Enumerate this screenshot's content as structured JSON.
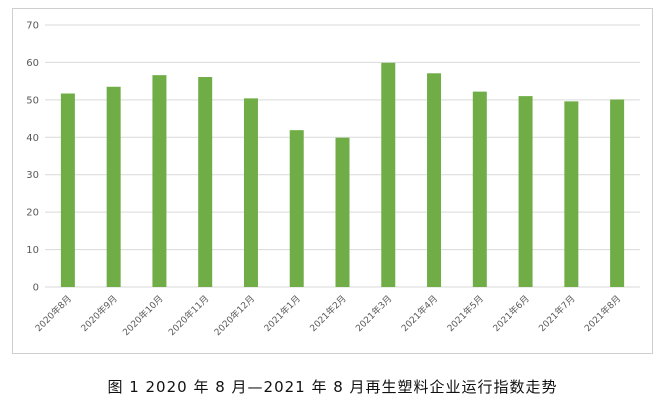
{
  "chart_data": {
    "type": "bar",
    "categories": [
      "2020年8月",
      "2020年9月",
      "2020年10月",
      "2020年11月",
      "2020年12月",
      "2021年1月",
      "2021年2月",
      "2021年3月",
      "2021年4月",
      "2021年5月",
      "2021年6月",
      "2021年7月",
      "2021年8月"
    ],
    "values": [
      51.7,
      53.5,
      56.6,
      56.1,
      50.4,
      41.9,
      39.9,
      59.9,
      57.1,
      52.2,
      51.0,
      49.6,
      50.1
    ],
    "ylim": [
      0,
      70
    ],
    "yticks": [
      0,
      10,
      20,
      30,
      40,
      50,
      60,
      70
    ],
    "grid": true,
    "bar_color": "#70ad47",
    "grid_color": "#d9d9d9"
  },
  "caption": "图 1  2020 年 8 月—2021 年 8 月再生塑料企业运行指数走势"
}
